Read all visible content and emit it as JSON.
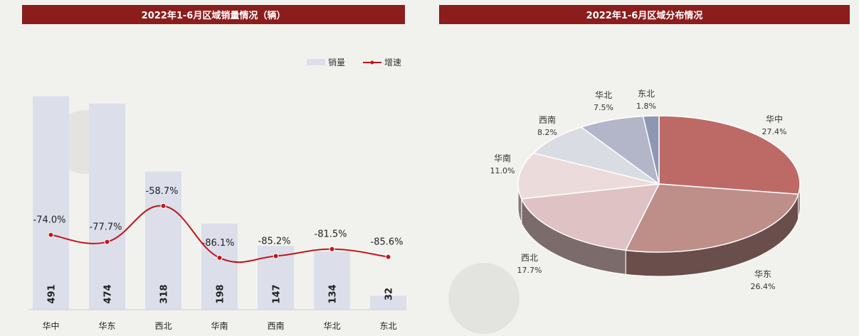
{
  "chart_data": [
    {
      "type": "bar",
      "title": "2022年1-6月区域销量情况（辆）",
      "categories": [
        "华中",
        "华东",
        "西北",
        "华南",
        "西南",
        "华北",
        "东北"
      ],
      "series": [
        {
          "name": "销量",
          "type": "bar",
          "values": [
            491,
            474,
            318,
            198,
            147,
            134,
            32
          ],
          "color": "#dcdfea"
        },
        {
          "name": "增速",
          "type": "line",
          "values": [
            -74.0,
            -77.7,
            -58.7,
            -86.1,
            -85.2,
            -81.5,
            -85.6
          ],
          "unit": "%",
          "color": "#c0161c"
        }
      ],
      "value_labels": [
        "491",
        "474",
        "318",
        "198",
        "147",
        "134",
        "32"
      ],
      "growth_labels": [
        "-74.0%",
        "-77.7%",
        "-58.7%",
        "-86.1%",
        "-85.2%",
        "-81.5%",
        "-85.6%"
      ],
      "ylim": [
        0,
        520
      ],
      "growth_ylim": [
        -100,
        -40
      ],
      "legend": "top-right",
      "grid": false
    },
    {
      "type": "pie",
      "title": "2022年1-6月区域分布情况",
      "labels": [
        "华中",
        "华东",
        "西北",
        "华南",
        "西南",
        "华北",
        "东北"
      ],
      "values": [
        27.4,
        26.4,
        17.7,
        11.0,
        8.2,
        7.5,
        1.8
      ],
      "value_labels": [
        "27.4%",
        "26.4%",
        "17.7%",
        "11.0%",
        "8.2%",
        "7.5%",
        "1.8%"
      ],
      "colors": [
        "#bd6a66",
        "#be8e89",
        "#dfc2c3",
        "#ebdcdb",
        "#d9dce3",
        "#b3b6c8",
        "#8e97b2"
      ],
      "style": "3d"
    }
  ]
}
